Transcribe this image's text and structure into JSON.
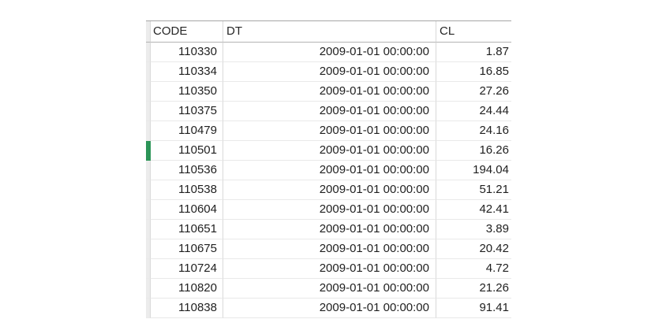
{
  "table": {
    "columns": [
      {
        "key": "code",
        "label": "CODE"
      },
      {
        "key": "dt",
        "label": "DT"
      },
      {
        "key": "cl",
        "label": "CL"
      }
    ],
    "rows": [
      {
        "code": "110330",
        "dt": "2009-01-01 00:00:00",
        "cl": "1.87"
      },
      {
        "code": "110334",
        "dt": "2009-01-01 00:00:00",
        "cl": "16.85"
      },
      {
        "code": "110350",
        "dt": "2009-01-01 00:00:00",
        "cl": "27.26"
      },
      {
        "code": "110375",
        "dt": "2009-01-01 00:00:00",
        "cl": "24.44"
      },
      {
        "code": "110479",
        "dt": "2009-01-01 00:00:00",
        "cl": "24.16"
      },
      {
        "code": "110501",
        "dt": "2009-01-01 00:00:00",
        "cl": "16.26"
      },
      {
        "code": "110536",
        "dt": "2009-01-01 00:00:00",
        "cl": "194.04"
      },
      {
        "code": "110538",
        "dt": "2009-01-01 00:00:00",
        "cl": "51.21"
      },
      {
        "code": "110604",
        "dt": "2009-01-01 00:00:00",
        "cl": "42.41"
      },
      {
        "code": "110651",
        "dt": "2009-01-01 00:00:00",
        "cl": "3.89"
      },
      {
        "code": "110675",
        "dt": "2009-01-01 00:00:00",
        "cl": "20.42"
      },
      {
        "code": "110724",
        "dt": "2009-01-01 00:00:00",
        "cl": "4.72"
      },
      {
        "code": "110820",
        "dt": "2009-01-01 00:00:00",
        "cl": "21.26"
      },
      {
        "code": "110838",
        "dt": "2009-01-01 00:00:00",
        "cl": "91.41"
      }
    ],
    "selected_row_code": "110501"
  },
  "colors": {
    "accent_green": "#2c9457",
    "top_border": "#a6a6a6",
    "header_border": "#b3b3b3",
    "row_separator": "#e9e9e9",
    "column_separator": "#d9d9d9",
    "gutter_background": "#ececec",
    "text": "#1f1f1f"
  }
}
